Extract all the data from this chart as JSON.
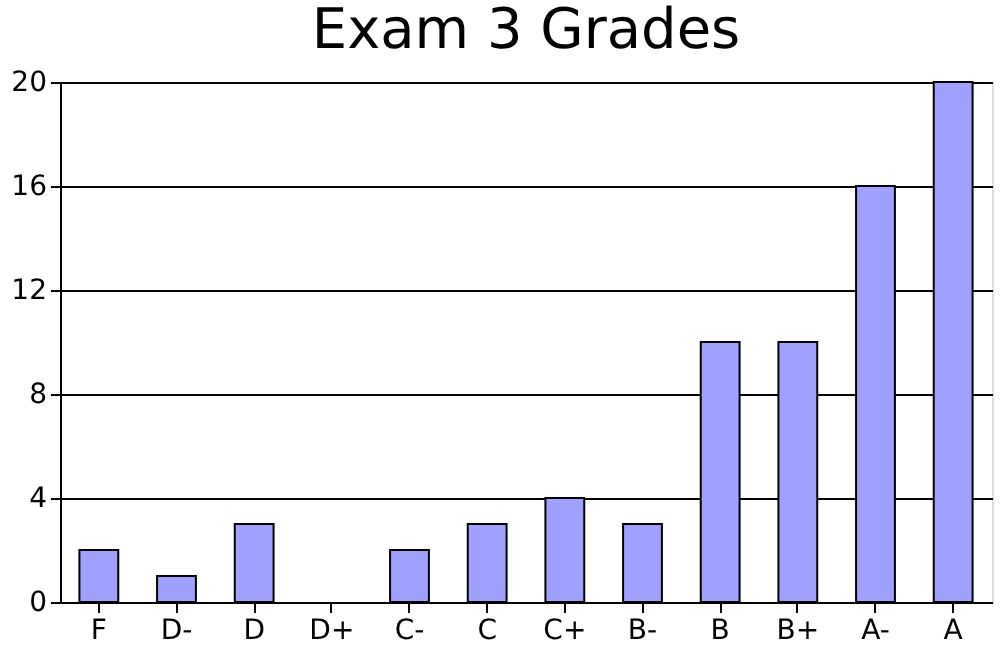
{
  "chart_data": {
    "type": "bar",
    "title": "Exam 3 Grades",
    "categories": [
      "F",
      "D-",
      "D",
      "D+",
      "C-",
      "C",
      "C+",
      "B-",
      "B",
      "B+",
      "A-",
      "A"
    ],
    "values": [
      2,
      1,
      3,
      0,
      2,
      3,
      4,
      3,
      10,
      10,
      16,
      20
    ],
    "color": "#a0a0ff",
    "ylim": [
      0,
      20
    ],
    "yticks": [
      0,
      4,
      8,
      12,
      16,
      20
    ],
    "grid": "y"
  }
}
